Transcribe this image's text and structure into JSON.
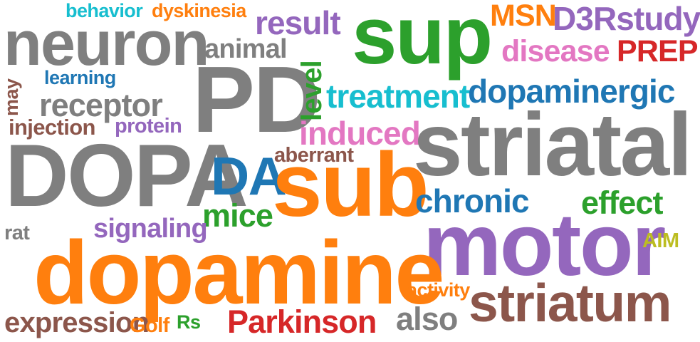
{
  "words": {
    "behavior": {
      "text": "behavior",
      "color": "#17becf"
    },
    "dyskinesia": {
      "text": "dyskinesia",
      "color": "#ff7f0e"
    },
    "result": {
      "text": "result",
      "color": "#9467bd"
    },
    "sup": {
      "text": "sup",
      "color": "#2ca02c"
    },
    "msn": {
      "text": "MSN",
      "color": "#ff7f0e"
    },
    "d3rstudy": {
      "text": "D3Rstudy",
      "color": "#9467bd"
    },
    "neuron": {
      "text": "neuron",
      "color": "#7f7f7f"
    },
    "animal": {
      "text": "animal",
      "color": "#7f7f7f"
    },
    "disease": {
      "text": "disease",
      "color": "#e377c2"
    },
    "prep": {
      "text": "PREP",
      "color": "#d62728"
    },
    "may": {
      "text": "may",
      "color": "#8c564b"
    },
    "learning": {
      "text": "learning",
      "color": "#1f77b4"
    },
    "pd": {
      "text": "PD",
      "color": "#7f7f7f"
    },
    "level": {
      "text": "level",
      "color": "#2ca02c"
    },
    "treatment": {
      "text": "treatment",
      "color": "#17becf"
    },
    "dopaminergic": {
      "text": "dopaminergic",
      "color": "#1f77b4"
    },
    "receptor": {
      "text": "receptor",
      "color": "#7f7f7f"
    },
    "injection": {
      "text": "injection",
      "color": "#8c564b"
    },
    "protein": {
      "text": "protein",
      "color": "#9467bd"
    },
    "induced": {
      "text": "induced",
      "color": "#e377c2"
    },
    "striatal": {
      "text": "striatal",
      "color": "#7f7f7f"
    },
    "dopa": {
      "text": "DOPA",
      "color": "#7f7f7f"
    },
    "aberrant": {
      "text": "aberrant",
      "color": "#8c564b"
    },
    "da": {
      "text": "DA",
      "color": "#1f77b4"
    },
    "sub": {
      "text": "sub",
      "color": "#ff7f0e"
    },
    "chronic": {
      "text": "chronic",
      "color": "#1f77b4"
    },
    "effect": {
      "text": "effect",
      "color": "#2ca02c"
    },
    "mice": {
      "text": "mice",
      "color": "#2ca02c"
    },
    "signaling": {
      "text": "signaling",
      "color": "#9467bd"
    },
    "rat": {
      "text": "rat",
      "color": "#7f7f7f"
    },
    "motor": {
      "text": "motor",
      "color": "#9467bd"
    },
    "aim": {
      "text": "AIM",
      "color": "#bcbd22"
    },
    "dopamine": {
      "text": "dopamine",
      "color": "#ff7f0e"
    },
    "activity": {
      "text": "activity",
      "color": "#ff7f0e"
    },
    "striatum": {
      "text": "striatum",
      "color": "#8c564b"
    },
    "expression": {
      "text": "expression",
      "color": "#8c564b"
    },
    "golf": {
      "text": "Golf",
      "color": "#ff7f0e"
    },
    "rs": {
      "text": "Rs",
      "color": "#2ca02c"
    },
    "parkinson": {
      "text": "Parkinson",
      "color": "#d62728"
    },
    "also": {
      "text": "also",
      "color": "#7f7f7f"
    }
  }
}
